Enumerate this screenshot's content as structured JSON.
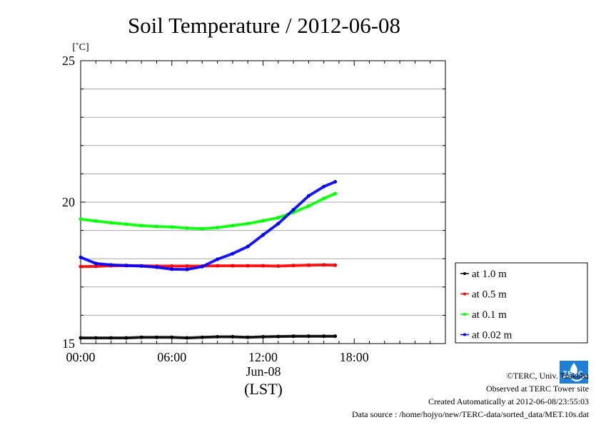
{
  "chart_data": {
    "type": "line",
    "title": "Soil Temperature / 2012-06-08",
    "ylabel": "[˚C]",
    "xlabel": "(LST)",
    "x_date_label": "Jun-08",
    "xlim": [
      "00:00",
      "24:00"
    ],
    "ylim": [
      15,
      25
    ],
    "x_ticks": [
      "00:00",
      "06:00",
      "12:00",
      "18:00"
    ],
    "y_ticks": [
      15,
      20,
      25
    ],
    "grid": true,
    "legend_position": "right",
    "series": [
      {
        "name": "at 1.0 m",
        "color": "#000000",
        "x": [
          "00:00",
          "01:00",
          "02:00",
          "03:00",
          "04:00",
          "05:00",
          "06:00",
          "07:00",
          "08:00",
          "09:00",
          "10:00",
          "11:00",
          "12:00",
          "13:00",
          "14:00",
          "15:00",
          "16:00",
          "16:45"
        ],
        "y": [
          15.2,
          15.2,
          15.2,
          15.2,
          15.22,
          15.22,
          15.22,
          15.2,
          15.22,
          15.24,
          15.24,
          15.22,
          15.24,
          15.25,
          15.26,
          15.26,
          15.26,
          15.26
        ]
      },
      {
        "name": "at 0.5 m",
        "color": "#ff0000",
        "x": [
          "00:00",
          "01:00",
          "02:00",
          "03:00",
          "04:00",
          "05:00",
          "06:00",
          "07:00",
          "08:00",
          "09:00",
          "10:00",
          "11:00",
          "12:00",
          "13:00",
          "14:00",
          "15:00",
          "16:00",
          "16:45"
        ],
        "y": [
          17.72,
          17.73,
          17.75,
          17.76,
          17.75,
          17.74,
          17.74,
          17.74,
          17.74,
          17.75,
          17.75,
          17.75,
          17.75,
          17.74,
          17.76,
          17.77,
          17.78,
          17.77
        ]
      },
      {
        "name": "at 0.1 m",
        "color": "#00ff00",
        "x": [
          "00:00",
          "01:00",
          "02:00",
          "03:00",
          "04:00",
          "05:00",
          "06:00",
          "07:00",
          "08:00",
          "09:00",
          "10:00",
          "11:00",
          "12:00",
          "13:00",
          "14:00",
          "15:00",
          "16:00",
          "16:45"
        ],
        "y": [
          19.4,
          19.33,
          19.27,
          19.22,
          19.17,
          19.14,
          19.12,
          19.08,
          19.06,
          19.1,
          19.17,
          19.24,
          19.34,
          19.45,
          19.64,
          19.86,
          20.13,
          20.3
        ]
      },
      {
        "name": "at 0.02 m",
        "color": "#0000ff",
        "x": [
          "00:00",
          "01:00",
          "02:00",
          "03:00",
          "04:00",
          "05:00",
          "06:00",
          "07:00",
          "08:00",
          "09:00",
          "10:00",
          "11:00",
          "12:00",
          "13:00",
          "14:00",
          "15:00",
          "16:00",
          "16:45"
        ],
        "y": [
          18.05,
          17.83,
          17.78,
          17.76,
          17.74,
          17.7,
          17.63,
          17.62,
          17.72,
          17.98,
          18.18,
          18.43,
          18.84,
          19.24,
          19.73,
          20.22,
          20.55,
          20.72
        ]
      }
    ]
  },
  "footer": {
    "copyright": "©TERC, Univ. Tsukuba",
    "observed": "Observed at TERC Tower site",
    "created": "Created Automatically at 2012-06-08/23:55:03",
    "source": "Data source : /home/hojyo/new/TERC-data/sorted_data/MET.10s.dat"
  },
  "logo": {
    "text": "TERC",
    "color": "#1f7fd6",
    "icon": "terc-logo-icon"
  }
}
